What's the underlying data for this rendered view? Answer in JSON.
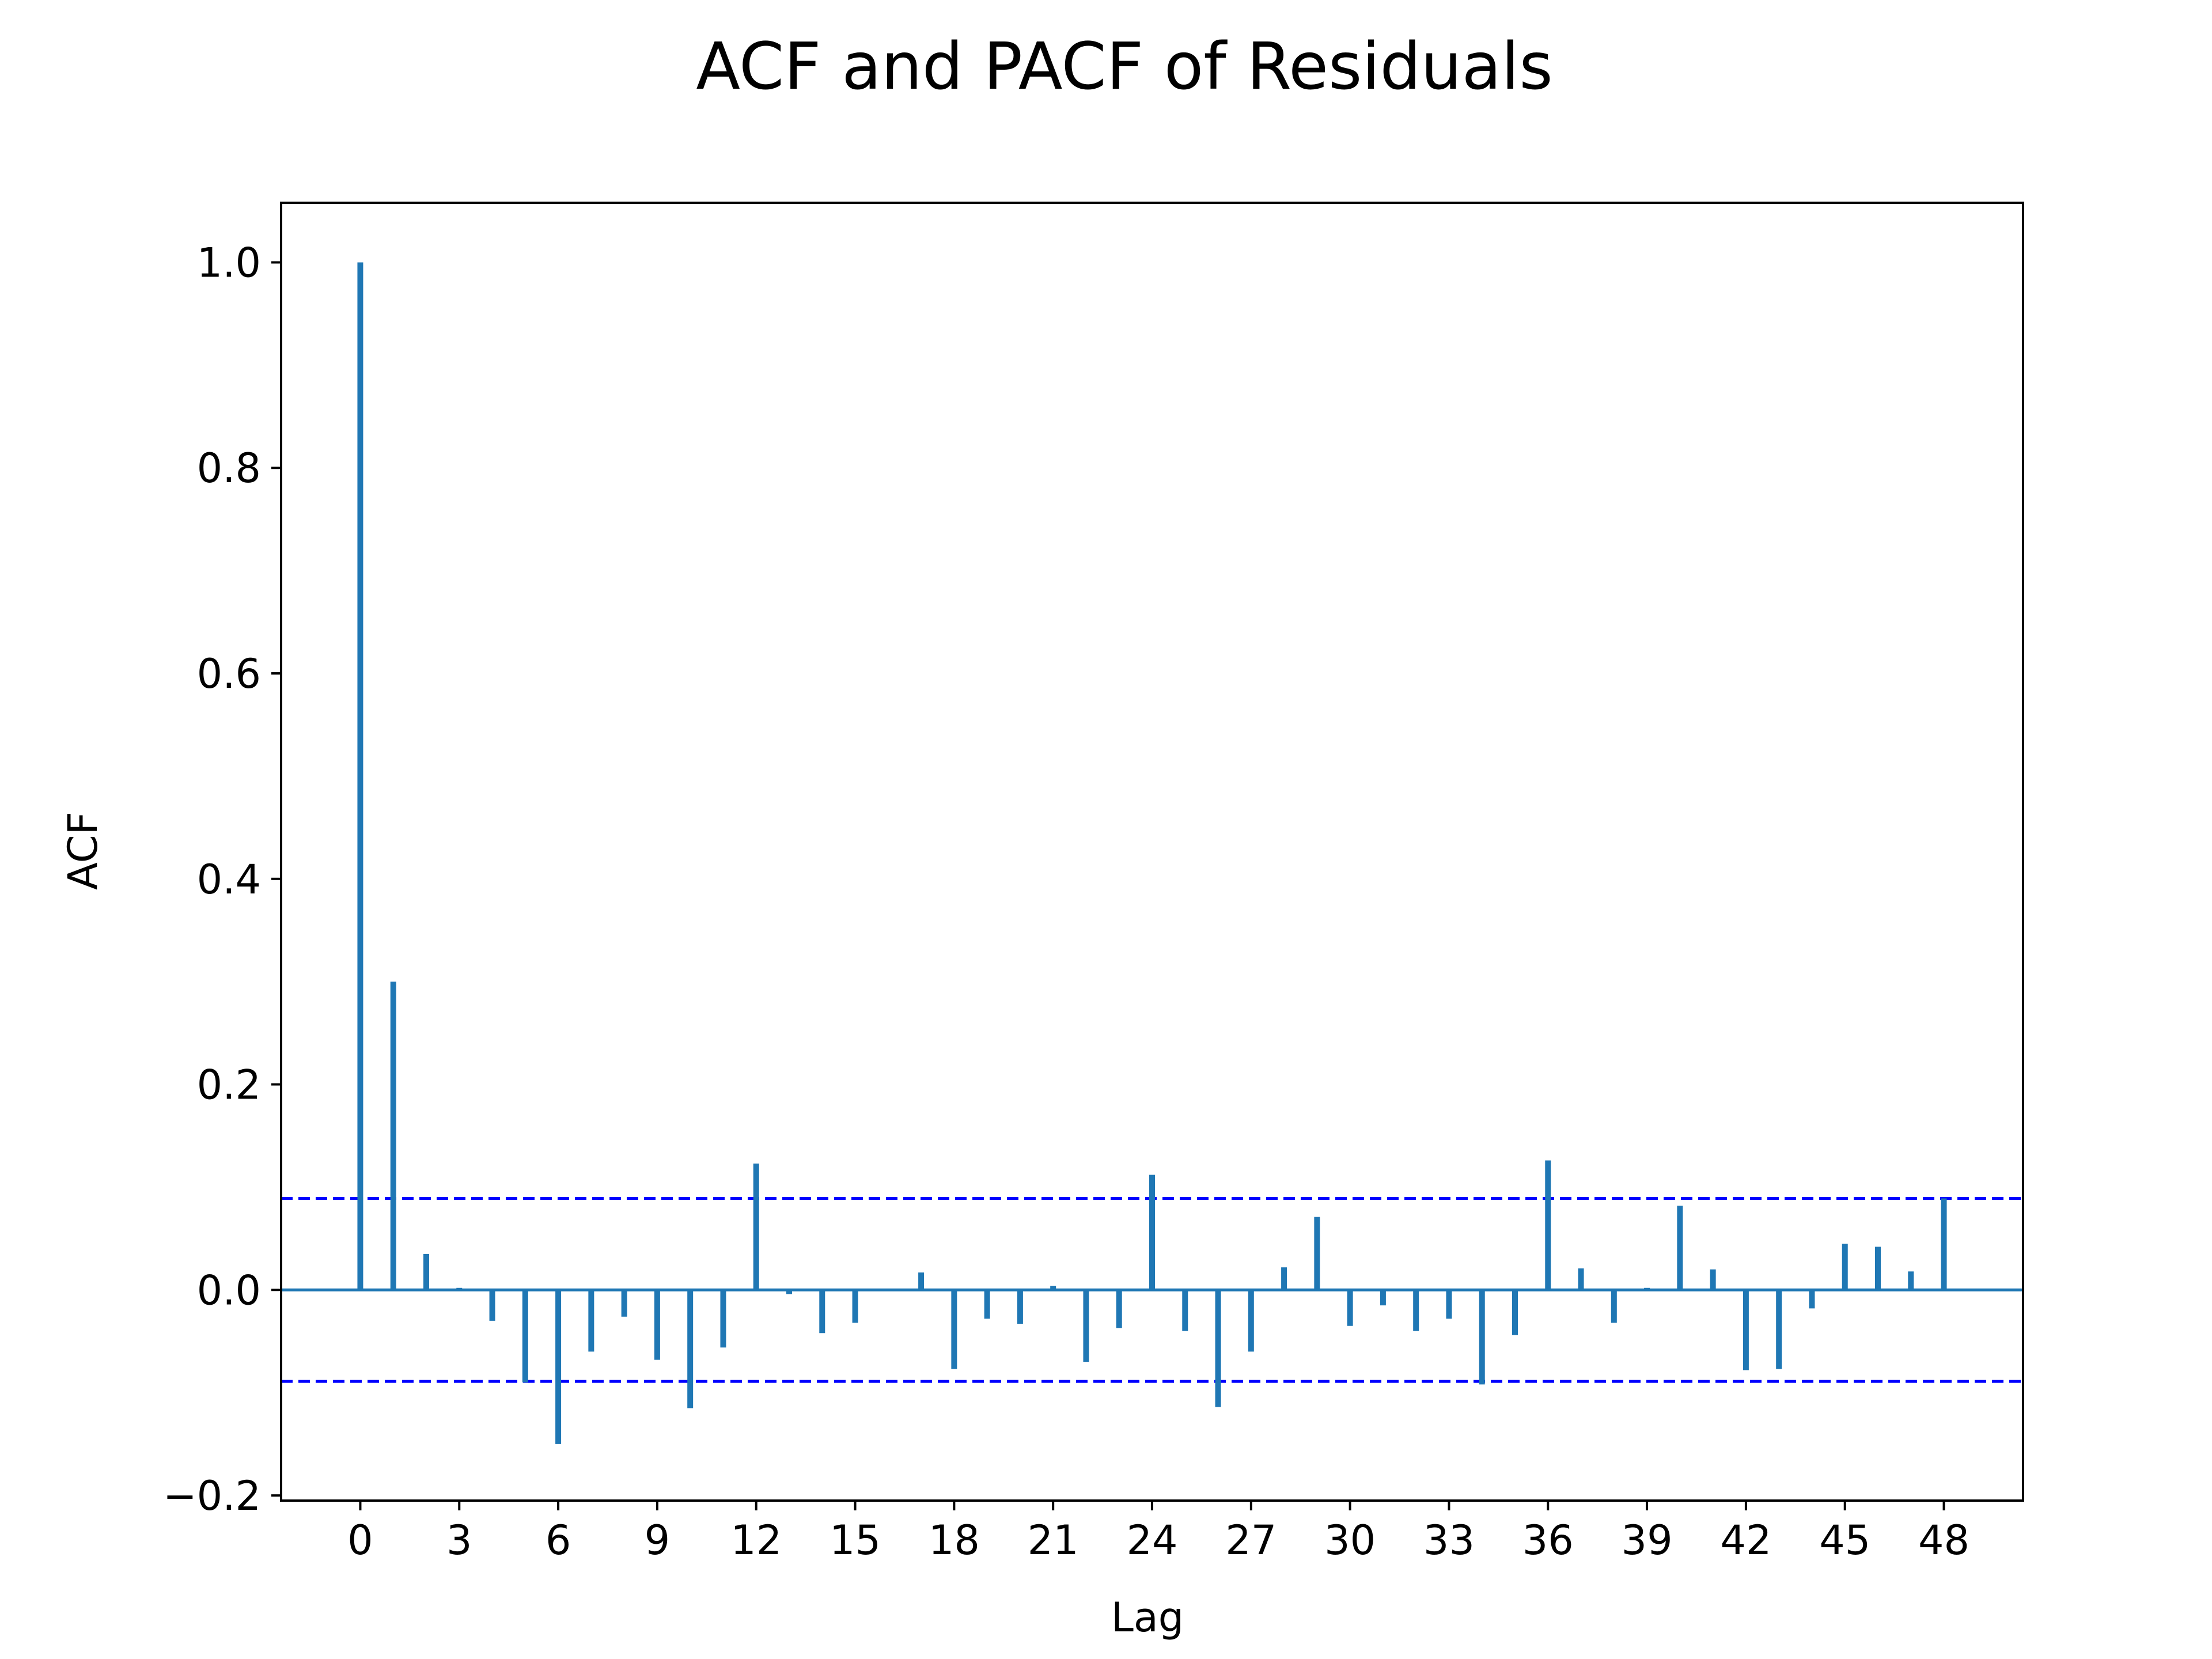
{
  "chart_data": {
    "type": "bar",
    "title": "ACF and PACF of Residuals",
    "xlabel": "Lag",
    "ylabel": "ACF",
    "xlim": [
      -2.4,
      50.4
    ],
    "ylim": [
      -0.205,
      1.058
    ],
    "x_ticks": [
      0,
      3,
      6,
      9,
      12,
      15,
      18,
      21,
      24,
      27,
      30,
      33,
      36,
      39,
      42,
      45,
      48
    ],
    "x_tick_labels": [
      "0",
      "3",
      "6",
      "9",
      "12",
      "15",
      "18",
      "21",
      "24",
      "27",
      "30",
      "33",
      "36",
      "39",
      "42",
      "45",
      "48"
    ],
    "y_ticks": [
      -0.2,
      0.0,
      0.2,
      0.4,
      0.6,
      0.8,
      1.0
    ],
    "y_tick_labels": [
      "−0.2",
      "0.0",
      "0.2",
      "0.4",
      "0.6",
      "0.8",
      "1.0"
    ],
    "lags": [
      0,
      1,
      2,
      3,
      4,
      5,
      6,
      7,
      8,
      9,
      10,
      11,
      12,
      13,
      14,
      15,
      16,
      17,
      18,
      19,
      20,
      21,
      22,
      23,
      24,
      25,
      26,
      27,
      28,
      29,
      30,
      31,
      32,
      33,
      34,
      35,
      36,
      37,
      38,
      39,
      40,
      41,
      42,
      43,
      44,
      45,
      46,
      47,
      48
    ],
    "values": [
      1.0,
      0.3,
      0.035,
      0.002,
      -0.03,
      -0.09,
      -0.15,
      -0.06,
      -0.026,
      -0.068,
      -0.115,
      -0.056,
      0.123,
      -0.004,
      -0.042,
      -0.032,
      0.0,
      0.017,
      -0.077,
      -0.028,
      -0.033,
      0.004,
      -0.07,
      -0.037,
      0.112,
      -0.04,
      -0.114,
      -0.06,
      0.022,
      0.071,
      -0.035,
      -0.015,
      -0.04,
      -0.028,
      -0.092,
      -0.044,
      0.126,
      0.021,
      -0.032,
      0.002,
      0.082,
      0.02,
      -0.078,
      -0.077,
      -0.018,
      0.045,
      0.042,
      0.018,
      0.089
    ],
    "confidence_band": 0.089,
    "grid": false,
    "colors": {
      "stems": "#1f77b4",
      "baseline": "#1f77b4",
      "confidence": "#0000ff",
      "frame": "#000000"
    }
  }
}
